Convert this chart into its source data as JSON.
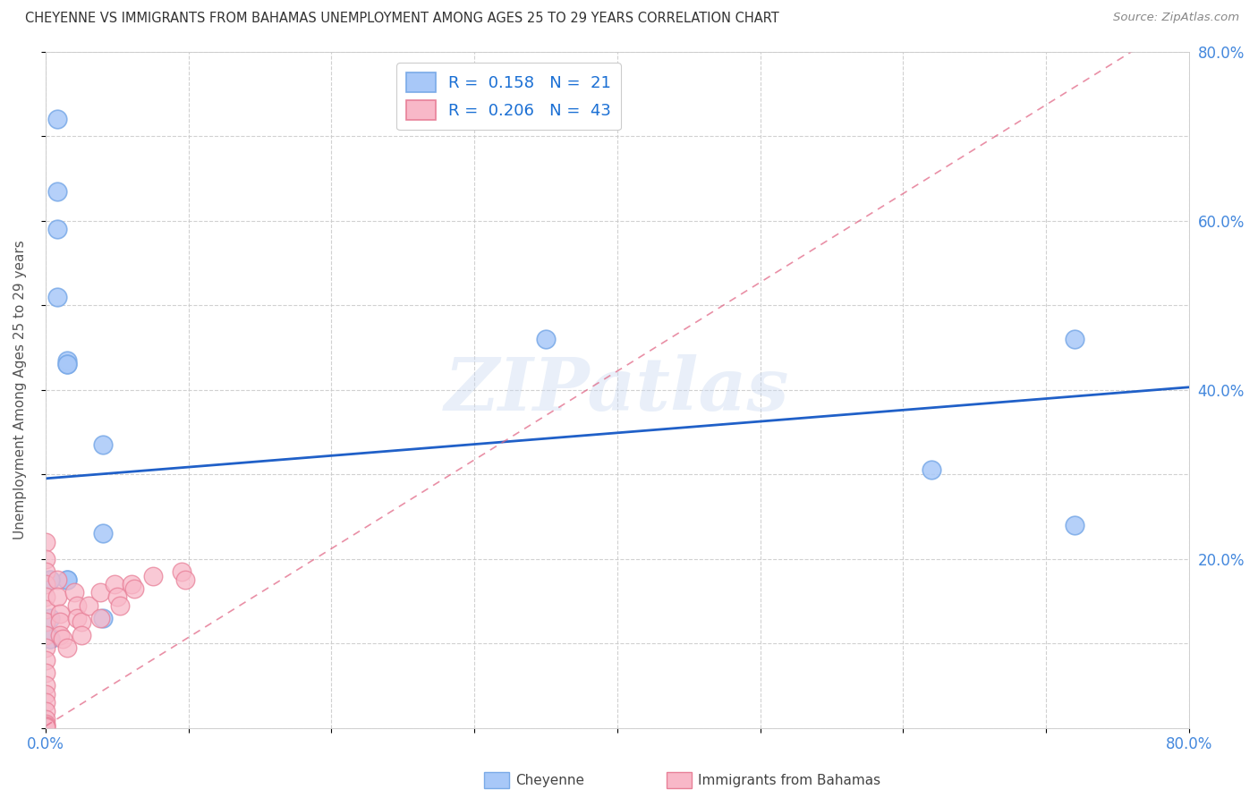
{
  "title": "CHEYENNE VS IMMIGRANTS FROM BAHAMAS UNEMPLOYMENT AMONG AGES 25 TO 29 YEARS CORRELATION CHART",
  "source": "Source: ZipAtlas.com",
  "ylabel": "Unemployment Among Ages 25 to 29 years",
  "legend_label1": "Cheyenne",
  "legend_label2": "Immigrants from Bahamas",
  "legend_r1": "0.158",
  "legend_n1": "21",
  "legend_r2": "0.206",
  "legend_n2": "43",
  "cheyenne_x": [
    0.008,
    0.008,
    0.008,
    0.008,
    0.015,
    0.015,
    0.015,
    0.015,
    0.015,
    0.04,
    0.04,
    0.04,
    0.35,
    0.62,
    0.72,
    0.72,
    0.003,
    0.003,
    0.003,
    0.003,
    0.003
  ],
  "cheyenne_y": [
    0.72,
    0.635,
    0.59,
    0.51,
    0.435,
    0.43,
    0.43,
    0.175,
    0.175,
    0.13,
    0.335,
    0.23,
    0.46,
    0.305,
    0.46,
    0.24,
    0.175,
    0.175,
    0.13,
    0.105,
    0.105
  ],
  "bahamas_x": [
    0.0,
    0.0,
    0.0,
    0.0,
    0.0,
    0.0,
    0.0,
    0.0,
    0.0,
    0.0,
    0.0,
    0.0,
    0.0,
    0.0,
    0.0,
    0.0,
    0.0,
    0.0,
    0.0,
    0.0,
    0.008,
    0.008,
    0.01,
    0.01,
    0.01,
    0.012,
    0.015,
    0.02,
    0.022,
    0.022,
    0.025,
    0.025,
    0.03,
    0.038,
    0.038,
    0.048,
    0.05,
    0.052,
    0.06,
    0.062,
    0.075,
    0.095,
    0.098
  ],
  "bahamas_y": [
    0.22,
    0.2,
    0.185,
    0.17,
    0.155,
    0.14,
    0.125,
    0.11,
    0.095,
    0.08,
    0.065,
    0.05,
    0.04,
    0.03,
    0.02,
    0.01,
    0.005,
    0.003,
    0.002,
    0.001,
    0.175,
    0.155,
    0.135,
    0.125,
    0.11,
    0.105,
    0.095,
    0.16,
    0.145,
    0.13,
    0.125,
    0.11,
    0.145,
    0.16,
    0.13,
    0.17,
    0.155,
    0.145,
    0.17,
    0.165,
    0.18,
    0.185,
    0.175
  ],
  "cheyenne_color": "#a8c8f8",
  "cheyenne_edge": "#7aaae8",
  "bahamas_color": "#f8b8c8",
  "bahamas_edge": "#e88098",
  "cheyenne_line_color": "#2060c8",
  "bahamas_line_color": "#e06080",
  "watermark": "ZIPatlas",
  "axis_color": "#4488dd",
  "title_color": "#333333",
  "background_color": "#ffffff",
  "xlim": [
    0.0,
    0.8
  ],
  "ylim": [
    0.0,
    0.8
  ],
  "cheyenne_line_intercept": 0.295,
  "cheyenne_line_slope": 0.135,
  "bahamas_line_intercept": 0.002,
  "bahamas_line_slope": 1.05
}
